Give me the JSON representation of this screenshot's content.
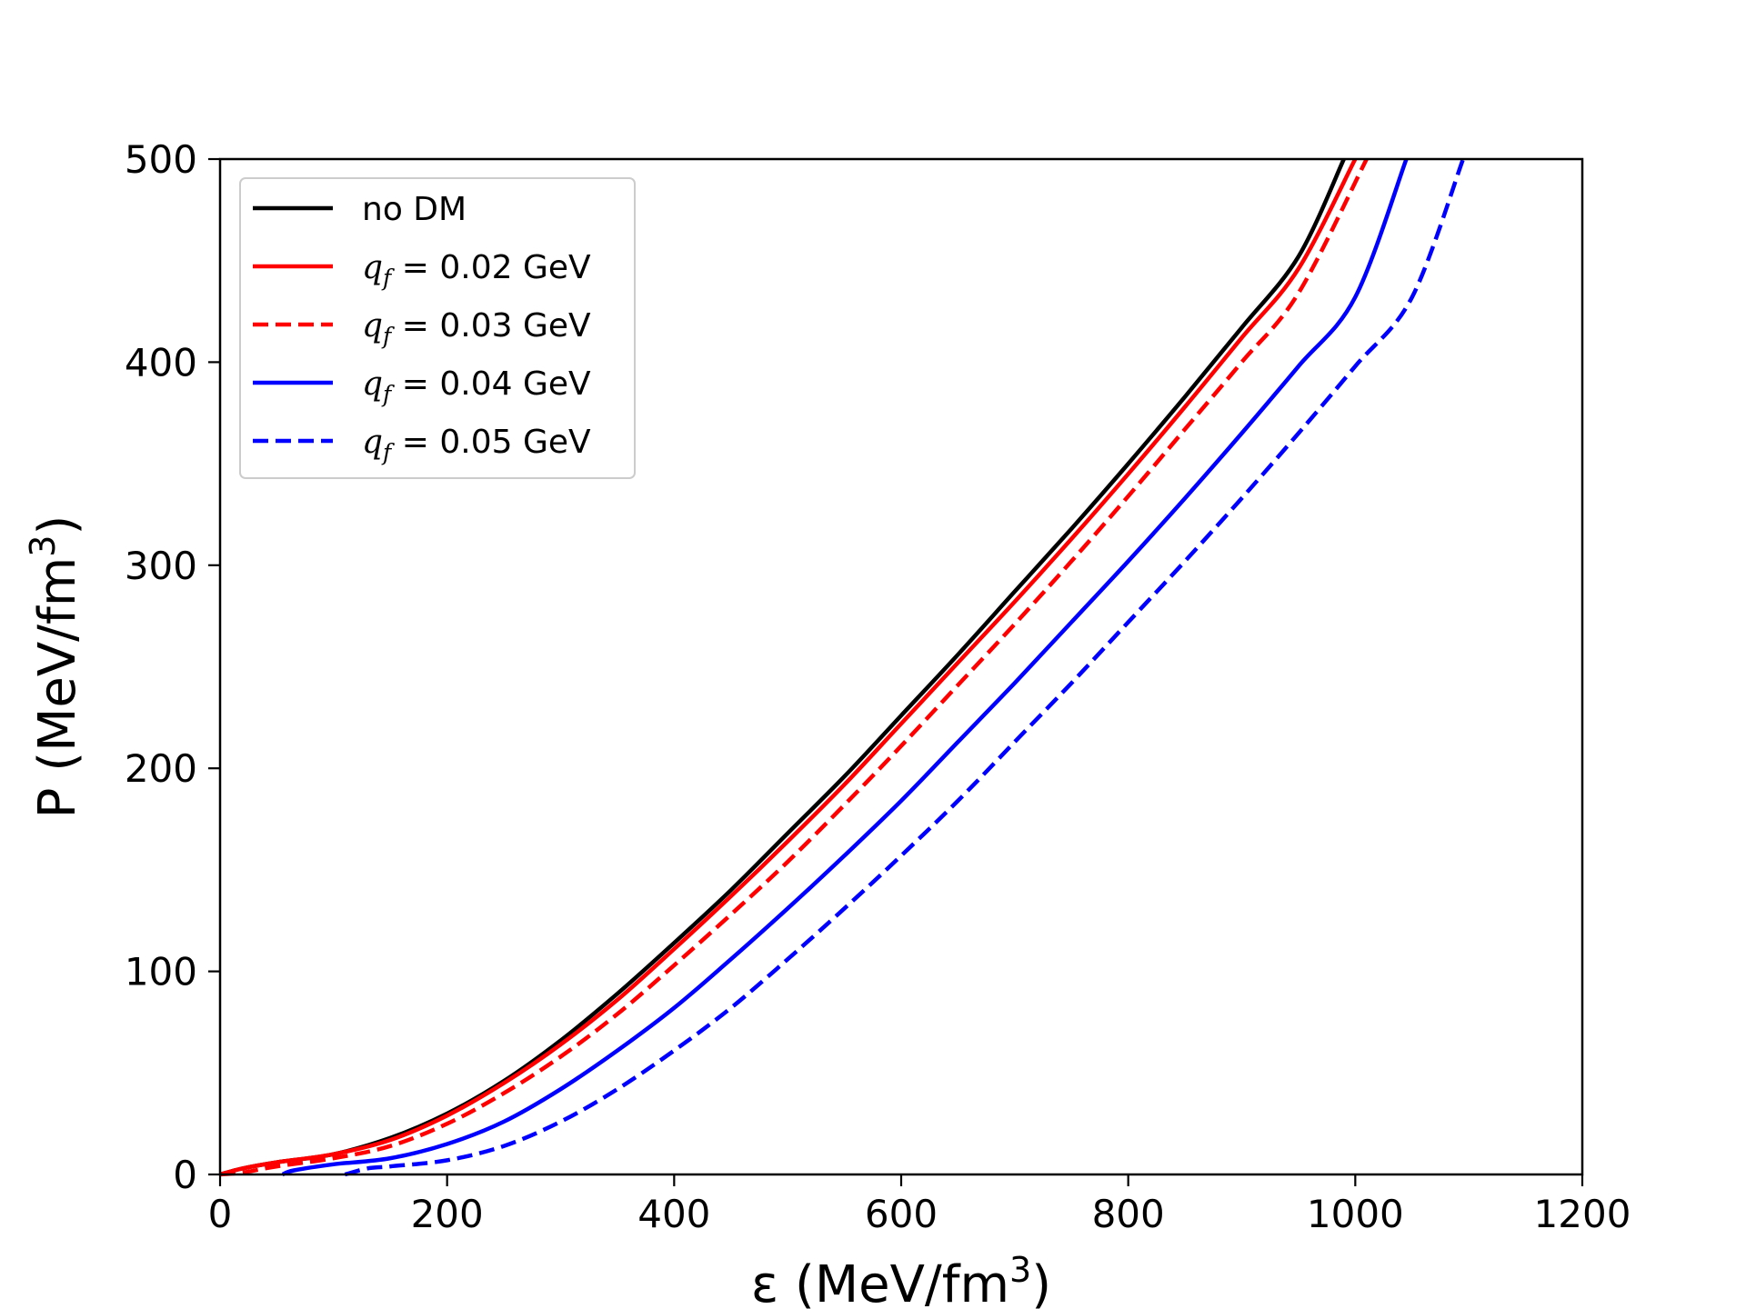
{
  "chart_data": {
    "type": "line",
    "title": "",
    "xlabel": "ε (MeV/fm",
    "xlabel_sup": "3",
    "xlabel_close": ")",
    "ylabel": "P (MeV/fm",
    "ylabel_sup": "3",
    "ylabel_close": ")",
    "xlim": [
      0,
      1200
    ],
    "ylim": [
      0,
      500
    ],
    "xticks": [
      0,
      200,
      400,
      600,
      800,
      1000,
      1200
    ],
    "yticks": [
      0,
      100,
      200,
      300,
      400,
      500
    ],
    "grid": false,
    "legend_position": "top-left",
    "series": [
      {
        "name": "no DM",
        "legend_math": "",
        "legend_text": "no DM",
        "color": "#000000",
        "dash": "solid",
        "x": [
          0,
          20,
          50,
          100,
          150,
          200,
          250,
          300,
          350,
          400,
          450,
          500,
          550,
          600,
          650,
          700,
          750,
          800,
          850,
          900,
          950,
          990
        ],
        "y": [
          0,
          3,
          6,
          10,
          18,
          30,
          46,
          66,
          89,
          114,
          140,
          168,
          196,
          226,
          256,
          287,
          318,
          350,
          383,
          417,
          452,
          500
        ]
      },
      {
        "name": "qf = 0.02 GeV",
        "legend_math": "q",
        "legend_sub": "f",
        "legend_text": " = 0.02 GeV",
        "color": "#ff0000",
        "dash": "solid",
        "x": [
          0,
          20,
          50,
          100,
          150,
          200,
          250,
          300,
          350,
          400,
          450,
          500,
          550,
          600,
          650,
          700,
          750,
          800,
          850,
          900,
          950,
          1000
        ],
        "y": [
          0,
          3,
          6,
          10,
          17,
          29,
          45,
          64,
          86,
          111,
          137,
          164,
          192,
          222,
          252,
          282,
          313,
          345,
          378,
          412,
          446,
          500
        ]
      },
      {
        "name": "qf = 0.03 GeV",
        "legend_math": "q",
        "legend_sub": "f",
        "legend_text": " = 0.03 GeV",
        "color": "#ff0000",
        "dash": "dashed",
        "x": [
          0,
          20,
          50,
          100,
          150,
          200,
          250,
          300,
          350,
          400,
          450,
          500,
          550,
          600,
          650,
          700,
          750,
          800,
          850,
          900,
          950,
          1010
        ],
        "y": [
          0,
          1,
          4,
          8,
          14,
          25,
          40,
          58,
          79,
          103,
          128,
          154,
          182,
          211,
          241,
          271,
          302,
          334,
          367,
          400,
          434,
          500
        ]
      },
      {
        "name": "qf = 0.04 GeV",
        "legend_math": "q",
        "legend_sub": "f",
        "legend_text": " = 0.04 GeV",
        "color": "#0000ff",
        "dash": "solid",
        "x": [
          55,
          65,
          100,
          150,
          200,
          250,
          300,
          350,
          400,
          450,
          500,
          550,
          600,
          650,
          700,
          750,
          800,
          850,
          900,
          950,
          1000,
          1045
        ],
        "y": [
          0,
          2,
          5,
          8,
          15,
          26,
          42,
          61,
          82,
          106,
          131,
          157,
          184,
          213,
          242,
          272,
          302,
          333,
          365,
          398,
          432,
          500
        ]
      },
      {
        "name": "qf = 0.05 GeV",
        "legend_math": "q",
        "legend_sub": "f",
        "legend_text": " = 0.05 GeV",
        "color": "#0000ff",
        "dash": "dashed",
        "x": [
          110,
          130,
          150,
          200,
          250,
          300,
          350,
          400,
          450,
          500,
          550,
          600,
          650,
          700,
          750,
          800,
          850,
          900,
          950,
          1000,
          1050,
          1095
        ],
        "y": [
          0,
          3,
          4,
          7,
          14,
          26,
          42,
          61,
          82,
          106,
          131,
          157,
          184,
          213,
          242,
          272,
          302,
          333,
          365,
          398,
          432,
          500
        ]
      }
    ]
  }
}
